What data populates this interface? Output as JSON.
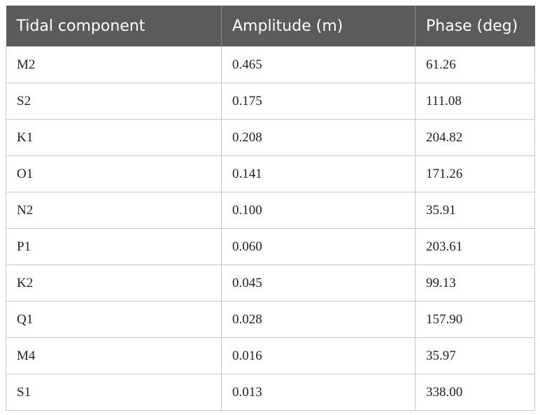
{
  "table": {
    "header": [
      "Tidal component",
      "Amplitude (m)",
      "Phase (deg)"
    ],
    "rows": [
      [
        "M2",
        "0.465",
        "61.26"
      ],
      [
        "S2",
        "0.175",
        "111.08"
      ],
      [
        "K1",
        "0.208",
        "204.82"
      ],
      [
        "O1",
        "0.141",
        "171.26"
      ],
      [
        "N2",
        "0.100",
        "35.91"
      ],
      [
        "P1",
        "0.060",
        "203.61"
      ],
      [
        "K2",
        "0.045",
        "99.13"
      ],
      [
        "Q1",
        "0.028",
        "157.90"
      ],
      [
        "M4",
        "0.016",
        "35.97"
      ],
      [
        "S1",
        "0.013",
        "338.00"
      ]
    ]
  }
}
